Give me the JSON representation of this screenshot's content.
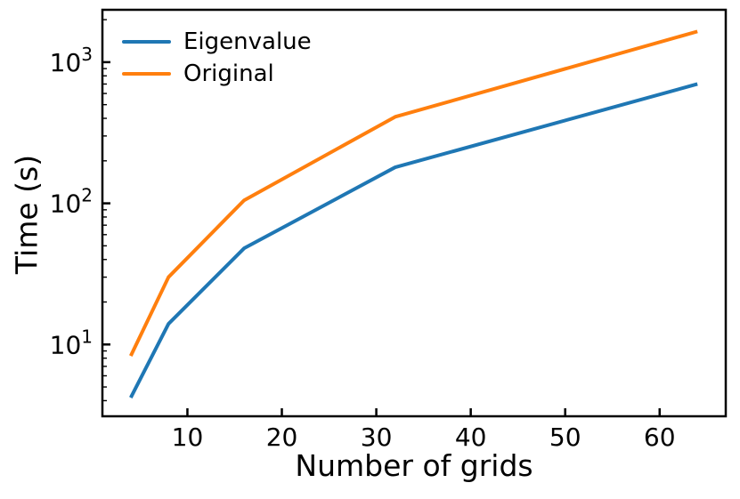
{
  "chart_data": {
    "type": "line",
    "title": "",
    "xlabel": "Number of grids",
    "ylabel": "Time (s)",
    "x": [
      4,
      8,
      16,
      32,
      64
    ],
    "series": [
      {
        "name": "Eigenvalue",
        "color": "#1f77b4",
        "values": [
          4.2,
          14,
          48,
          180,
          700
        ]
      },
      {
        "name": "Original",
        "color": "#ff7f0e",
        "values": [
          8.3,
          30,
          105,
          410,
          1650
        ]
      }
    ],
    "xscale": "linear",
    "yscale": "log",
    "xlim": [
      1,
      67
    ],
    "ylim": [
      3.1,
      2350
    ],
    "xticks": [
      10,
      20,
      30,
      40,
      50,
      60
    ],
    "yticks": [
      10,
      100,
      1000
    ],
    "ytick_labels": [
      "10^1",
      "10^2",
      "10^3"
    ],
    "grid": false,
    "legend": {
      "position": "upper-left",
      "frame": false
    },
    "axis_color": "#000000",
    "background_color": "#ffffff"
  }
}
